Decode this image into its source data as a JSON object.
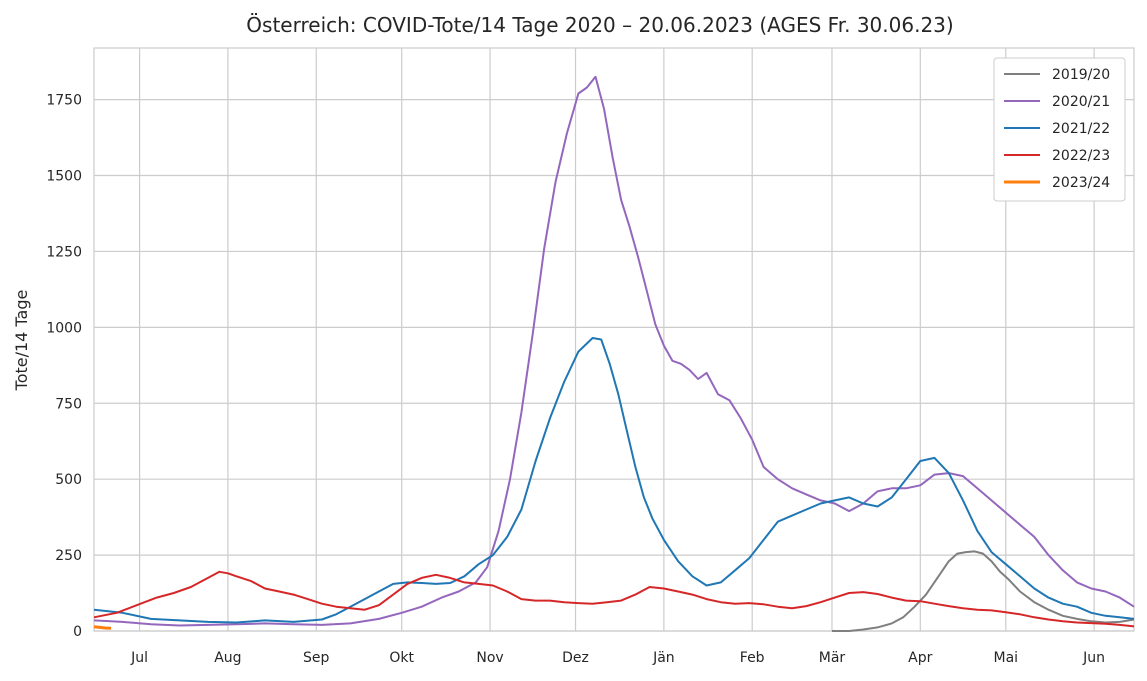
{
  "chart_data": {
    "type": "line",
    "title": "Österreich: COVID-Tote/14 Tage 2020 – 20.06.2023 (AGES Fr. 30.06.23)",
    "xlabel": "",
    "ylabel": "Tote/14 Tage",
    "x_unit": "day of season (Jun 15 – Jun 14)",
    "xlim": [
      0,
      365
    ],
    "ylim": [
      0,
      1920
    ],
    "yticks": [
      0,
      250,
      500,
      750,
      1000,
      1250,
      1500,
      1750
    ],
    "xticks": [
      {
        "label": "Jul",
        "x": 16
      },
      {
        "label": "Aug",
        "x": 47
      },
      {
        "label": "Sep",
        "x": 78
      },
      {
        "label": "Okt",
        "x": 108
      },
      {
        "label": "Nov",
        "x": 139
      },
      {
        "label": "Dez",
        "x": 169
      },
      {
        "label": "Jän",
        "x": 200
      },
      {
        "label": "Feb",
        "x": 231
      },
      {
        "label": "Mär",
        "x": 259
      },
      {
        "label": "Apr",
        "x": 290
      },
      {
        "label": "Mai",
        "x": 320
      },
      {
        "label": "Jun",
        "x": 351
      }
    ],
    "grid": true,
    "legend_position": "top-right",
    "series": [
      {
        "name": "2019/20",
        "color": "#7f7f7f",
        "x": [
          259,
          265,
          270,
          275,
          280,
          284,
          288,
          292,
          296,
          300,
          303,
          306,
          309,
          312,
          315,
          318,
          321,
          325,
          330,
          335,
          340,
          345,
          350,
          355,
          360,
          365
        ],
        "y": [
          0,
          0,
          5,
          12,
          25,
          45,
          80,
          120,
          175,
          230,
          255,
          260,
          262,
          255,
          230,
          195,
          170,
          130,
          95,
          70,
          50,
          40,
          32,
          28,
          30,
          38
        ]
      },
      {
        "name": "2020/21",
        "color": "#9467bd",
        "x": [
          0,
          10,
          20,
          30,
          40,
          50,
          60,
          70,
          80,
          90,
          100,
          108,
          115,
          122,
          128,
          134,
          138,
          142,
          146,
          150,
          154,
          158,
          162,
          166,
          170,
          173,
          176,
          179,
          182,
          185,
          188,
          191,
          194,
          197,
          200,
          203,
          206,
          209,
          212,
          215,
          219,
          223,
          227,
          231,
          235,
          240,
          245,
          250,
          255,
          260,
          265,
          270,
          275,
          280,
          285,
          290,
          295,
          300,
          305,
          310,
          315,
          320,
          325,
          330,
          335,
          340,
          345,
          350,
          355,
          360,
          365
        ],
        "y": [
          35,
          30,
          22,
          18,
          20,
          22,
          25,
          22,
          20,
          25,
          40,
          60,
          80,
          110,
          130,
          160,
          210,
          330,
          500,
          720,
          980,
          1260,
          1480,
          1640,
          1770,
          1790,
          1825,
          1720,
          1560,
          1420,
          1330,
          1230,
          1120,
          1010,
          940,
          890,
          880,
          860,
          830,
          850,
          780,
          760,
          700,
          630,
          540,
          500,
          470,
          450,
          430,
          420,
          395,
          420,
          460,
          470,
          470,
          480,
          515,
          520,
          510,
          470,
          430,
          390,
          350,
          310,
          250,
          200,
          160,
          140,
          130,
          110,
          80
        ]
      },
      {
        "name": "2021/22",
        "color": "#1f77b4",
        "x": [
          0,
          10,
          20,
          30,
          40,
          50,
          60,
          70,
          80,
          85,
          90,
          95,
          100,
          105,
          110,
          115,
          120,
          125,
          130,
          135,
          140,
          145,
          150,
          155,
          160,
          165,
          170,
          175,
          178,
          181,
          184,
          187,
          190,
          193,
          196,
          200,
          205,
          210,
          215,
          220,
          225,
          230,
          235,
          240,
          245,
          250,
          255,
          260,
          265,
          270,
          275,
          280,
          285,
          290,
          295,
          300,
          305,
          310,
          315,
          320,
          325,
          330,
          335,
          340,
          345,
          350,
          355,
          360,
          365
        ],
        "y": [
          70,
          60,
          40,
          35,
          30,
          28,
          35,
          30,
          38,
          55,
          80,
          105,
          130,
          155,
          160,
          158,
          155,
          158,
          180,
          220,
          250,
          310,
          400,
          560,
          700,
          820,
          920,
          965,
          960,
          880,
          780,
          660,
          540,
          440,
          370,
          300,
          230,
          180,
          150,
          160,
          200,
          240,
          300,
          360,
          380,
          400,
          420,
          430,
          440,
          420,
          410,
          440,
          500,
          560,
          570,
          520,
          430,
          330,
          260,
          220,
          180,
          140,
          110,
          90,
          80,
          60,
          50,
          45,
          40
        ]
      },
      {
        "name": "2022/23",
        "color": "#d62728",
        "x": [
          0,
          8,
          15,
          22,
          28,
          34,
          40,
          44,
          47,
          50,
          55,
          60,
          65,
          70,
          75,
          80,
          85,
          90,
          95,
          100,
          105,
          110,
          115,
          120,
          125,
          130,
          135,
          140,
          145,
          150,
          155,
          160,
          165,
          170,
          175,
          180,
          185,
          190,
          195,
          200,
          205,
          210,
          215,
          220,
          225,
          230,
          235,
          240,
          245,
          250,
          255,
          260,
          265,
          270,
          275,
          280,
          285,
          290,
          295,
          300,
          305,
          310,
          315,
          320,
          325,
          330,
          335,
          340,
          345,
          350,
          355,
          360,
          365
        ],
        "y": [
          45,
          60,
          85,
          110,
          125,
          145,
          175,
          195,
          190,
          180,
          165,
          140,
          130,
          120,
          105,
          90,
          80,
          75,
          70,
          85,
          120,
          155,
          175,
          185,
          175,
          160,
          155,
          150,
          130,
          105,
          100,
          100,
          95,
          92,
          90,
          95,
          100,
          120,
          145,
          140,
          130,
          120,
          105,
          95,
          90,
          92,
          88,
          80,
          75,
          82,
          95,
          110,
          125,
          128,
          122,
          110,
          100,
          98,
          90,
          82,
          75,
          70,
          68,
          62,
          55,
          45,
          38,
          32,
          28,
          26,
          24,
          20,
          15
        ]
      },
      {
        "name": "2023/24",
        "color": "#ff7f0e",
        "x": [
          0,
          2,
          4,
          6
        ],
        "y": [
          14,
          12,
          10,
          9
        ]
      }
    ]
  }
}
